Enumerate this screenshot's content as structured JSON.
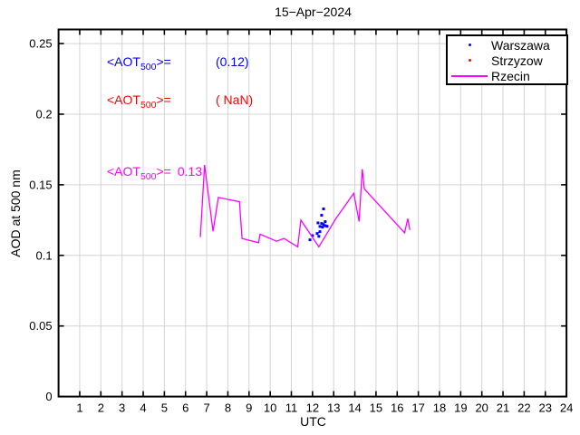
{
  "chart_data": {
    "type": "line",
    "title": "15−Apr−2024",
    "xlabel": "UTC",
    "ylabel": "AOD at 500 nm",
    "xlim": [
      0,
      24
    ],
    "ylim": [
      0,
      0.26
    ],
    "xticks": [
      1,
      2,
      3,
      4,
      5,
      6,
      7,
      8,
      9,
      10,
      11,
      12,
      13,
      14,
      15,
      16,
      17,
      18,
      19,
      20,
      21,
      22,
      23,
      24
    ],
    "yticks": [
      0,
      0.05,
      0.1,
      0.15,
      0.2,
      0.25
    ],
    "ytick_labels": [
      "0",
      "0.05",
      "0.1",
      "0.15",
      "0.2",
      "0.25"
    ],
    "grid": true,
    "legend_position": "top-right",
    "series": [
      {
        "name": "Warszawa",
        "type": "scatter",
        "color": "#0000ff",
        "points": [
          [
            11.88,
            0.111
          ],
          [
            12.0,
            0.114
          ],
          [
            12.22,
            0.1155
          ],
          [
            12.26,
            0.123
          ],
          [
            12.3,
            0.1135
          ],
          [
            12.35,
            0.1168
          ],
          [
            12.35,
            0.1205
          ],
          [
            12.43,
            0.1226
          ],
          [
            12.43,
            0.1284
          ],
          [
            12.47,
            0.12
          ],
          [
            12.52,
            0.1219
          ],
          [
            12.52,
            0.1329
          ],
          [
            12.6,
            0.121
          ],
          [
            12.6,
            0.1239
          ],
          [
            12.69,
            0.1206
          ]
        ]
      },
      {
        "name": "Strzyzow",
        "type": "scatter",
        "color": "#ff0000",
        "points": []
      },
      {
        "name": "Rzecin",
        "type": "line",
        "color": "#ff00ff",
        "points": [
          [
            6.7,
            0.113
          ],
          [
            6.9,
            0.164
          ],
          [
            7.3,
            0.117
          ],
          [
            7.55,
            0.141
          ],
          [
            8.55,
            0.138
          ],
          [
            8.67,
            0.112
          ],
          [
            9.45,
            0.109
          ],
          [
            9.52,
            0.115
          ],
          [
            10.3,
            0.11
          ],
          [
            10.65,
            0.112
          ],
          [
            11.3,
            0.106
          ],
          [
            11.45,
            0.125
          ],
          [
            12.3,
            0.106
          ],
          [
            13.1,
            0.126
          ],
          [
            13.95,
            0.144
          ],
          [
            14.2,
            0.124
          ],
          [
            14.35,
            0.161
          ],
          [
            14.45,
            0.147
          ],
          [
            16.35,
            0.116
          ],
          [
            16.5,
            0.126
          ],
          [
            16.6,
            0.118
          ]
        ]
      }
    ]
  },
  "annotations": [
    {
      "series": "Warszawa",
      "pre": "<AOT",
      "sub": "500",
      "post": ">=",
      "value": "(0.12)",
      "color": "#0000ff"
    },
    {
      "series": "Strzyzow",
      "pre": "<AOT",
      "sub": "500",
      "post": ">=",
      "value": "( NaN)",
      "color": "#ff0000"
    },
    {
      "series": "Rzecin",
      "pre": "<AOT",
      "sub": "500",
      "post": ">=",
      "value": "0.13",
      "color": "#ff00ff"
    }
  ],
  "legend": {
    "items": [
      {
        "label": "Warszawa",
        "color": "#0000ff",
        "marker": "dot"
      },
      {
        "label": "Strzyzow",
        "color": "#ff0000",
        "marker": "dot"
      },
      {
        "label": "Rzecin",
        "color": "#ff00ff",
        "marker": "line"
      }
    ]
  },
  "colors": {
    "axis": "#000000",
    "grid": "#d4d4d4",
    "background": "#ffffff"
  }
}
